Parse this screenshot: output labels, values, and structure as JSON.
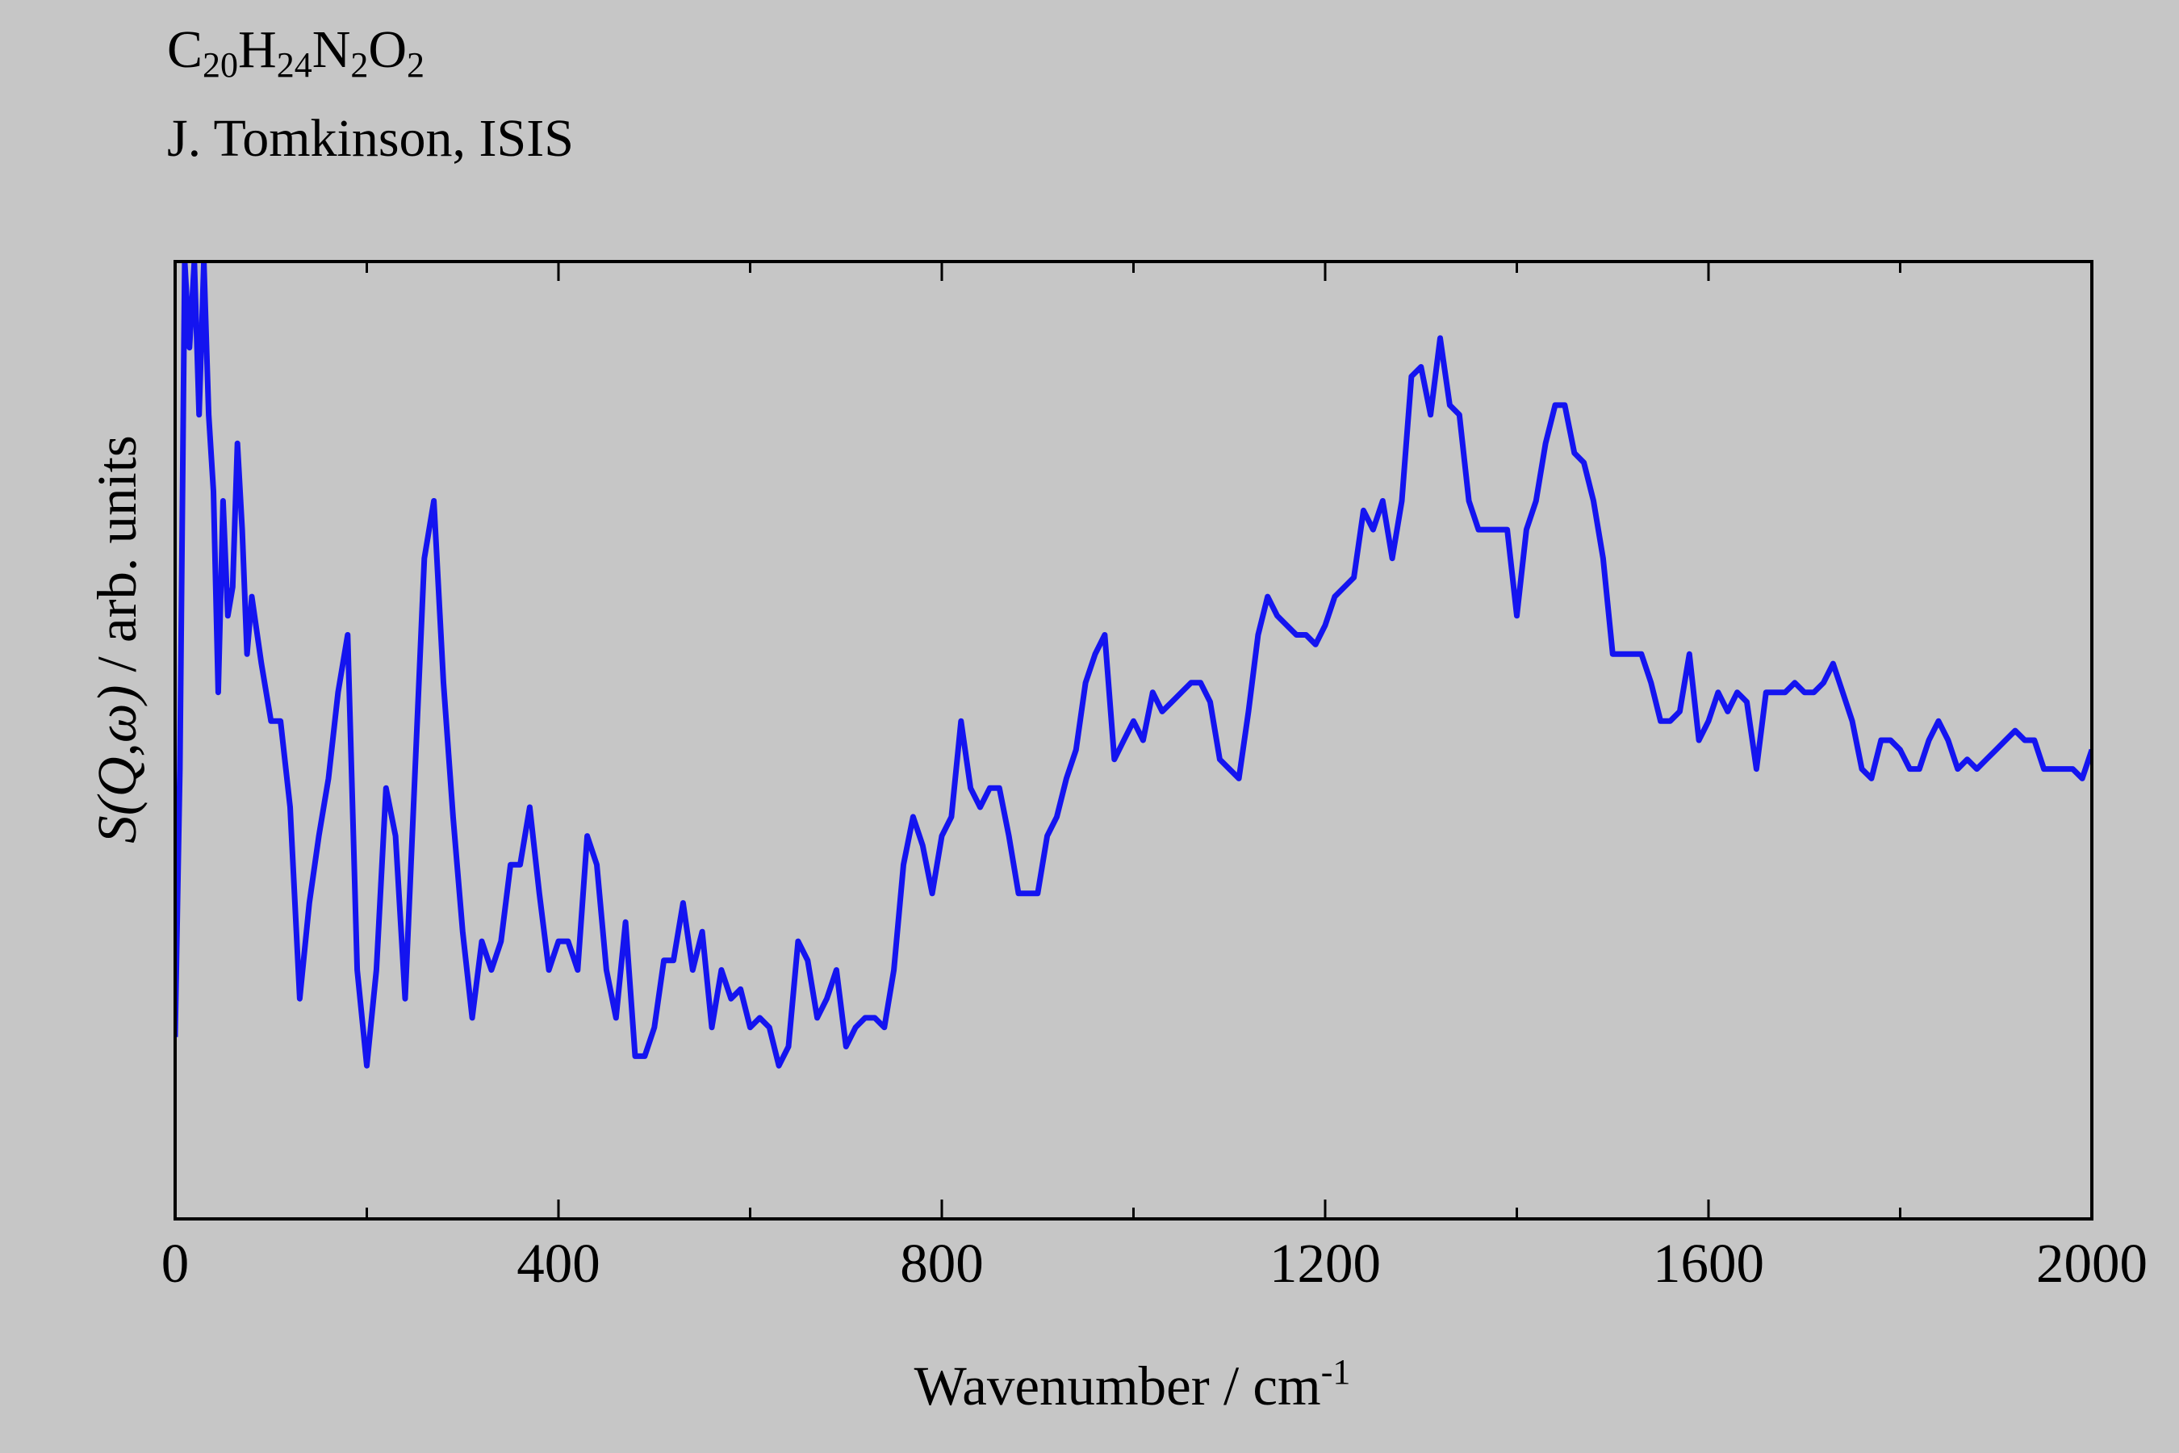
{
  "chart_data": {
    "type": "line",
    "title_parts": [
      "C",
      "20",
      "H",
      "24",
      "N",
      "2",
      "O",
      "2"
    ],
    "subtitle": "J. Tomkinson, ISIS",
    "x_label": "Wavenumber / cm",
    "x_label_sup": "-1",
    "y_label_italic": "S(Q,ω)",
    "y_label": "/ arb. units",
    "color": "#1414f0",
    "xlim": [
      0,
      2000
    ],
    "ylim": [
      0,
      100
    ],
    "xticks": [
      0,
      400,
      800,
      1200,
      1600,
      2000
    ],
    "xminor": [
      200,
      600,
      1000,
      1400,
      1800
    ],
    "x": [
      0,
      5,
      10,
      15,
      20,
      25,
      30,
      35,
      40,
      45,
      50,
      55,
      60,
      65,
      70,
      75,
      80,
      90,
      100,
      110,
      120,
      130,
      140,
      150,
      160,
      170,
      180,
      190,
      200,
      210,
      220,
      230,
      240,
      250,
      260,
      270,
      280,
      290,
      300,
      310,
      320,
      330,
      340,
      350,
      360,
      370,
      380,
      390,
      400,
      410,
      420,
      430,
      440,
      450,
      460,
      470,
      480,
      490,
      500,
      510,
      520,
      530,
      540,
      550,
      560,
      570,
      580,
      590,
      600,
      610,
      620,
      630,
      640,
      650,
      660,
      670,
      680,
      690,
      700,
      710,
      720,
      730,
      740,
      750,
      760,
      770,
      780,
      790,
      800,
      810,
      820,
      830,
      840,
      850,
      860,
      870,
      880,
      890,
      900,
      910,
      920,
      930,
      940,
      950,
      960,
      970,
      980,
      990,
      1000,
      1010,
      1020,
      1030,
      1040,
      1050,
      1060,
      1070,
      1080,
      1090,
      1100,
      1110,
      1120,
      1130,
      1140,
      1150,
      1160,
      1170,
      1180,
      1190,
      1200,
      1210,
      1220,
      1230,
      1240,
      1250,
      1260,
      1270,
      1280,
      1290,
      1300,
      1310,
      1320,
      1330,
      1340,
      1350,
      1360,
      1370,
      1380,
      1390,
      1400,
      1410,
      1420,
      1430,
      1440,
      1450,
      1460,
      1470,
      1480,
      1490,
      1500,
      1510,
      1520,
      1530,
      1540,
      1550,
      1560,
      1570,
      1580,
      1590,
      1600,
      1610,
      1620,
      1630,
      1640,
      1650,
      1660,
      1670,
      1680,
      1690,
      1700,
      1710,
      1720,
      1730,
      1740,
      1750,
      1760,
      1770,
      1780,
      1790,
      1800,
      1810,
      1820,
      1830,
      1840,
      1850,
      1860,
      1870,
      1880,
      1890,
      1900,
      1910,
      1920,
      1930,
      1940,
      1950,
      1960,
      1970,
      1980,
      1990,
      2000
    ],
    "values": [
      19,
      47,
      100,
      91,
      100,
      84,
      100,
      84,
      76,
      55,
      75,
      63,
      66,
      81,
      72,
      59,
      65,
      58,
      52,
      52,
      43,
      23,
      33,
      40,
      46,
      55,
      61,
      26,
      16,
      26,
      45,
      40,
      23,
      46,
      69,
      75,
      56,
      42,
      30,
      21,
      29,
      26,
      29,
      37,
      37,
      43,
      34,
      26,
      29,
      29,
      26,
      40,
      37,
      26,
      21,
      31,
      17,
      17,
      20,
      27,
      27,
      33,
      26,
      30,
      20,
      26,
      23,
      24,
      20,
      21,
      20,
      16,
      18,
      29,
      27,
      21,
      23,
      26,
      18,
      20,
      21,
      21,
      20,
      26,
      37,
      42,
      39,
      34,
      40,
      42,
      52,
      45,
      43,
      45,
      45,
      40,
      34,
      34,
      34,
      40,
      42,
      46,
      49,
      56,
      59,
      61,
      48,
      50,
      52,
      50,
      55,
      53,
      54,
      55,
      56,
      56,
      54,
      48,
      47,
      46,
      53,
      61,
      65,
      63,
      62,
      61,
      61,
      60,
      62,
      65,
      66,
      67,
      74,
      72,
      75,
      69,
      75,
      88,
      89,
      84,
      92,
      85,
      84,
      75,
      72,
      72,
      72,
      72,
      63,
      72,
      75,
      81,
      85,
      85,
      80,
      79,
      75,
      69,
      59,
      59,
      59,
      59,
      56,
      52,
      52,
      53,
      59,
      50,
      52,
      55,
      53,
      55,
      54,
      47,
      55,
      55,
      55,
      56,
      55,
      55,
      56,
      58,
      55,
      52,
      47,
      46,
      50,
      50,
      49,
      47,
      47,
      50,
      52,
      50,
      47,
      48,
      47,
      48,
      49,
      50,
      51,
      50,
      50,
      47,
      47,
      47,
      47,
      46,
      49
    ]
  }
}
